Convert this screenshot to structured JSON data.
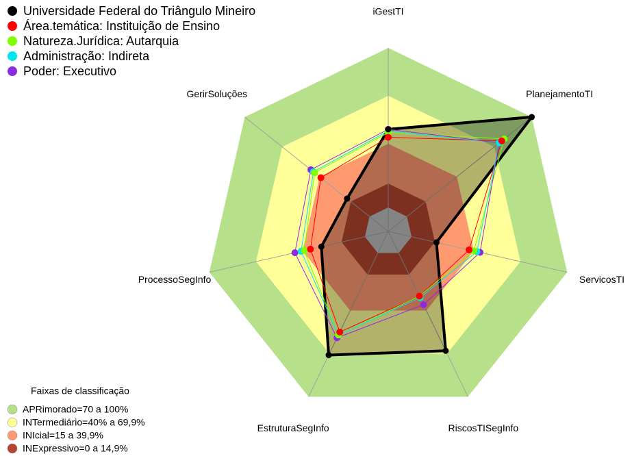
{
  "chart_data": {
    "type": "radar",
    "categories": [
      "iGestTI",
      "PlanejamentoTI",
      "ServicosTI",
      "RiscosTISegInfo",
      "EstruturaSegInfo",
      "ProcessoSegInfo",
      "GerirSoluções"
    ],
    "ylim": [
      -15,
      100
    ],
    "series": [
      {
        "name": "Universidade Federal do Triângulo Mineiro",
        "color": "#000000",
        "values": [
          49,
          100,
          16,
          68,
          71,
          28,
          18
        ]
      },
      {
        "name": "Área.temática: Instituição de Ensino",
        "color": "#ff0000",
        "values": [
          44,
          76,
          37,
          30,
          55,
          35,
          39
        ]
      },
      {
        "name": "Natureza.Jurídica: Autarquia",
        "color": "#7fff00",
        "values": [
          47,
          78,
          40,
          30,
          57,
          39,
          44
        ]
      },
      {
        "name": "Administração: Indireta",
        "color": "#00e5ee",
        "values": [
          48,
          74,
          42,
          31,
          57,
          41,
          45
        ]
      },
      {
        "name": "Poder: Executivo",
        "color": "#8a2be2",
        "values": [
          49,
          74,
          44,
          36,
          59,
          45,
          47
        ]
      }
    ],
    "legend_title": "Faixas de classificação",
    "bands": [
      {
        "name": "APRimorado=70 a 100%",
        "color": "#b6e08a",
        "from": 70,
        "to": 100
      },
      {
        "name": "INTermediário=40% a 69,9%",
        "color": "#ffff99",
        "from": 40,
        "to": 70
      },
      {
        "name": "INIcial=15 a 39,9%",
        "color": "#ff9a70",
        "from": 15,
        "to": 40
      },
      {
        "name": "INExpressivo=0 a 14,9%",
        "color": "#b5452f",
        "from": 0,
        "to": 15
      }
    ],
    "center_color": "#bebebe"
  }
}
